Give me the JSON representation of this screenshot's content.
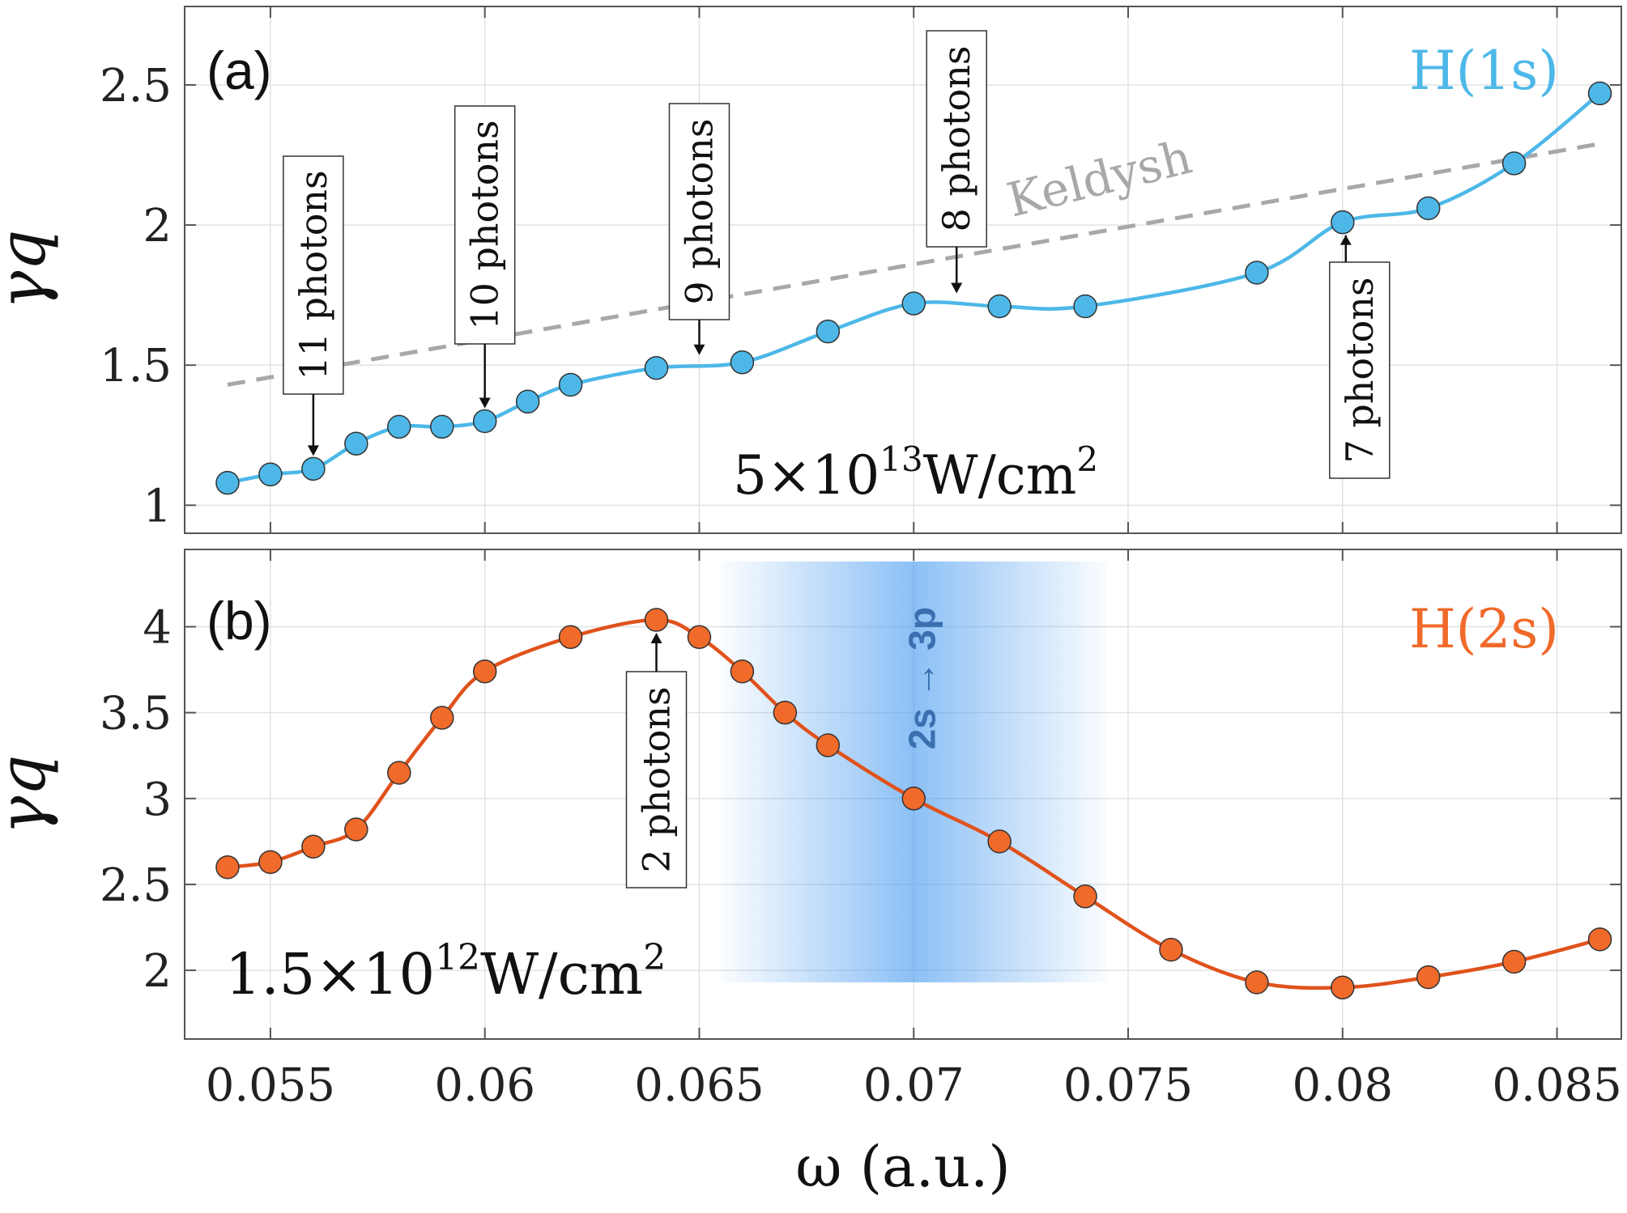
{
  "chart_data": [
    {
      "type": "line",
      "panel_label": "(a)",
      "species_label": "H(1s)",
      "ylabel": "γq",
      "xlim": [
        0.053,
        0.0865
      ],
      "ylim": [
        0.9,
        2.78
      ],
      "grid": true,
      "colors": {
        "series": "#4db8e8",
        "keldysh": "#a8a8a8"
      },
      "yticks": [
        {
          "value": 1,
          "label": "1"
        },
        {
          "value": 1.5,
          "label": "1.5"
        },
        {
          "value": 2,
          "label": "2"
        },
        {
          "value": 2.5,
          "label": "2.5"
        }
      ],
      "series": [
        {
          "x": [
            0.054,
            0.055,
            0.056,
            0.057,
            0.058,
            0.059,
            0.06,
            0.061,
            0.062,
            0.064,
            0.066,
            0.068,
            0.07,
            0.072,
            0.074,
            0.078,
            0.08,
            0.082,
            0.084,
            0.086
          ],
          "y": [
            1.08,
            1.11,
            1.13,
            1.22,
            1.28,
            1.28,
            1.3,
            1.37,
            1.43,
            1.49,
            1.51,
            1.62,
            1.72,
            1.71,
            1.71,
            1.83,
            2.01,
            2.06,
            2.22,
            2.47
          ]
        }
      ],
      "keldysh": {
        "label": "Keldysh",
        "x": [
          0.054,
          0.086
        ],
        "y": [
          1.43,
          2.29
        ]
      },
      "annotations": [
        {
          "text": "11 photons",
          "x": 0.056,
          "y": 1.13
        },
        {
          "text": "10 photons",
          "x": 0.06,
          "y": 1.3
        },
        {
          "text": "9 photons",
          "x": 0.065,
          "y": 1.49
        },
        {
          "text": "8 photons",
          "x": 0.071,
          "y": 1.71
        },
        {
          "text": "7 photons",
          "x": 0.08,
          "y": 2.01
        }
      ],
      "intensity": {
        "mantissa": "5×10",
        "exponent": "13",
        "unit": "W/cm",
        "unit_exp": "2"
      }
    },
    {
      "type": "line",
      "panel_label": "(b)",
      "species_label": "H(2s)",
      "ylabel": "γq",
      "xlabel": "ω (a.u.)",
      "xlim": [
        0.053,
        0.0865
      ],
      "ylim": [
        1.6,
        4.45
      ],
      "grid": true,
      "colors": {
        "series": "#e0521c",
        "highlight": "#4a9cf0",
        "highlight_text": "#3a6fb0"
      },
      "yticks": [
        {
          "value": 2,
          "label": "2"
        },
        {
          "value": 2.5,
          "label": "2.5"
        },
        {
          "value": 3,
          "label": "3"
        },
        {
          "value": 3.5,
          "label": "3.5"
        },
        {
          "value": 4,
          "label": "4"
        }
      ],
      "xticks": [
        {
          "value": 0.055,
          "label": "0.055"
        },
        {
          "value": 0.06,
          "label": "0.06"
        },
        {
          "value": 0.065,
          "label": "0.065"
        },
        {
          "value": 0.07,
          "label": "0.07"
        },
        {
          "value": 0.075,
          "label": "0.075"
        },
        {
          "value": 0.08,
          "label": "0.08"
        },
        {
          "value": 0.085,
          "label": "0.085"
        }
      ],
      "series": [
        {
          "x": [
            0.054,
            0.055,
            0.056,
            0.057,
            0.058,
            0.059,
            0.06,
            0.062,
            0.064,
            0.065,
            0.066,
            0.067,
            0.068,
            0.07,
            0.072,
            0.074,
            0.076,
            0.078,
            0.08,
            0.082,
            0.084,
            0.086
          ],
          "y": [
            2.6,
            2.63,
            2.72,
            2.82,
            3.15,
            3.47,
            3.74,
            3.94,
            4.04,
            3.94,
            3.74,
            3.5,
            3.31,
            3.0,
            2.75,
            2.43,
            2.12,
            1.93,
            1.9,
            1.96,
            2.05,
            2.18
          ]
        }
      ],
      "highlight_band": {
        "x": [
          0.0655,
          0.0745
        ],
        "y": [
          1.93,
          4.38
        ],
        "label": "2s → 3p"
      },
      "annotations": [
        {
          "text": "2 photons",
          "x": 0.064,
          "y": 4.04
        }
      ],
      "intensity": {
        "mantissa": "1.5×10",
        "exponent": "12",
        "unit": "W/cm",
        "unit_exp": "2"
      }
    }
  ]
}
